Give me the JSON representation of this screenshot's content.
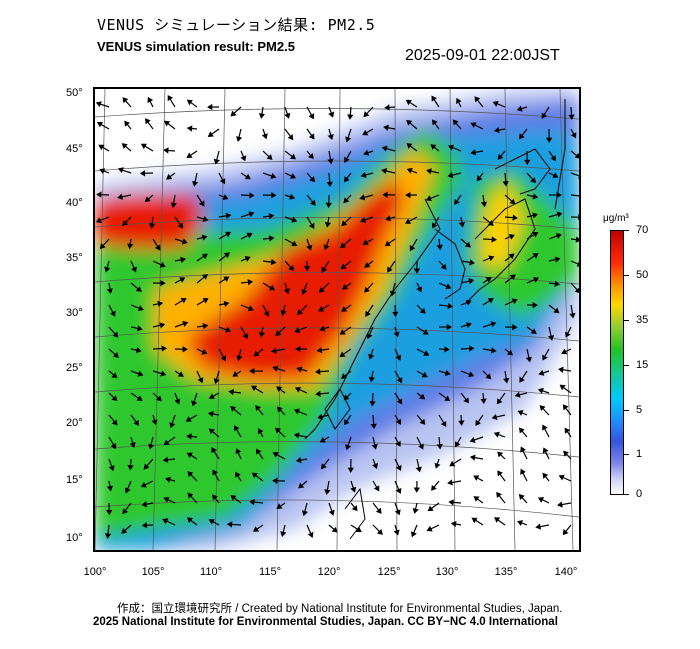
{
  "title_jp": "VENUS シミュレーション結果: PM2.5",
  "title_en": "VENUS simulation result: PM2.5",
  "timestamp": "2025-09-01 22:00JST",
  "map": {
    "lat_labels": [
      "50°",
      "45°",
      "40°",
      "35°",
      "30°",
      "25°",
      "20°",
      "15°",
      "10°"
    ],
    "lon_labels": [
      "100°",
      "105°",
      "110°",
      "115°",
      "120°",
      "125°",
      "130°",
      "135°",
      "140°"
    ],
    "field": "PM2.5 concentration with wind vectors"
  },
  "colorbar": {
    "unit": "μg/m³",
    "labels": [
      "70",
      "50",
      "35",
      "15",
      "5",
      "1",
      "0"
    ]
  },
  "credits": {
    "line1": "作成：国立環境研究所 / Created by National Institute for Environmental Studies, Japan.",
    "line2": "2025 National Institute for Environmental Studies, Japan. CC BY−NC 4.0 International"
  }
}
